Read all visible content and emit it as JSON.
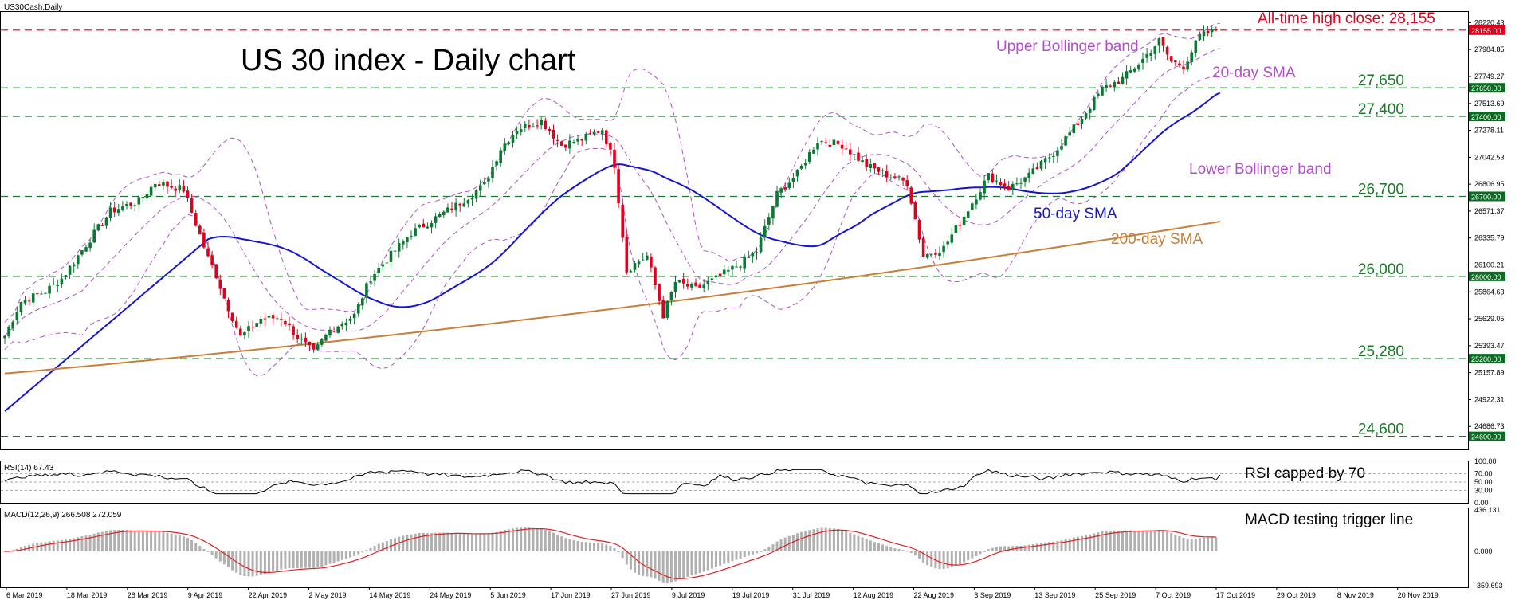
{
  "symbol_label": "US30Cash,Daily",
  "rsi_label": "RSI(14) 67.43",
  "macd_label": "MACD(12,26,9) 266.508 272.059",
  "colors": {
    "bull": "#0a7a33",
    "bear": "#e0001b",
    "sma50": "#1515d0",
    "sma200": "#c87f3a",
    "bollinger": "#b050c8",
    "levels": "#1a7a2a",
    "ath": "#e0001b",
    "macd_signal": "#e02020",
    "macd_hist": "#b0b0b0",
    "osc_line": "#000000",
    "level_badge_bg": "#0b6b22",
    "ath_badge_bg": "#e0001b"
  },
  "chart_data": [
    {
      "type": "candlestick",
      "title": "US 30 index - Daily chart",
      "ylim": [
        24500,
        28300
      ],
      "y_ticks": [
        "28220.43",
        "27984.85",
        "27749.27",
        "27513.69",
        "27278.11",
        "27042.53",
        "26806.95",
        "26571.37",
        "26335.79",
        "26100.21",
        "25864.63",
        "25629.05",
        "25393.47",
        "25157.89",
        "24922.31",
        "24686.73"
      ],
      "x_labels": [
        "6 Mar 2019",
        "18 Mar 2019",
        "28 Mar 2019",
        "9 Apr 2019",
        "22 Apr 2019",
        "2 May 2019",
        "14 May 2019",
        "24 May 2019",
        "5 Jun 2019",
        "17 Jun 2019",
        "27 Jun 2019",
        "9 Jul 2019",
        "19 Jul 2019",
        "31 Jul 2019",
        "12 Aug 2019",
        "22 Aug 2019",
        "3 Sep 2019",
        "13 Sep 2019",
        "25 Sep 2019",
        "7 Oct 2019",
        "17 Oct 2019",
        "29 Oct 2019",
        "8 Nov 2019",
        "20 Nov 2019"
      ],
      "levels": [
        {
          "value": 27650,
          "label": "27,650",
          "badge": "27650.00"
        },
        {
          "value": 27400,
          "label": "27,400",
          "badge": "27400.00"
        },
        {
          "value": 26700,
          "label": "26,700",
          "badge": "26700.00"
        },
        {
          "value": 26000,
          "label": "26,000",
          "badge": "26000.00"
        },
        {
          "value": 25280,
          "label": "25,280",
          "badge": "25280.00"
        },
        {
          "value": 24600,
          "label": "24,600",
          "badge": "24600.00"
        }
      ],
      "all_time_high": {
        "value": 28155,
        "label": "All-time high close: 28,155",
        "badge": "28155.00"
      },
      "annotations": {
        "upper_bb": "Upper Bollinger band",
        "sma20": "20-day SMA",
        "lower_bb": "Lower Bollinger band",
        "sma50": "50-day SMA",
        "sma200": "200-day SMA"
      },
      "price_anchors": [
        [
          0,
          25480
        ],
        [
          4,
          25780
        ],
        [
          10,
          25870
        ],
        [
          14,
          25980
        ],
        [
          19,
          26230
        ],
        [
          26,
          26570
        ],
        [
          33,
          26660
        ],
        [
          37,
          26820
        ],
        [
          44,
          26760
        ],
        [
          50,
          26160
        ],
        [
          52,
          26010
        ],
        [
          54,
          25810
        ],
        [
          58,
          25470
        ],
        [
          63,
          25630
        ],
        [
          68,
          25640
        ],
        [
          72,
          25470
        ],
        [
          76,
          25330
        ],
        [
          80,
          25530
        ],
        [
          86,
          25660
        ],
        [
          90,
          25990
        ],
        [
          95,
          26190
        ],
        [
          100,
          26380
        ],
        [
          105,
          26490
        ],
        [
          111,
          26620
        ],
        [
          118,
          26800
        ],
        [
          122,
          27120
        ],
        [
          126,
          27290
        ],
        [
          132,
          27360
        ],
        [
          137,
          27150
        ],
        [
          142,
          27200
        ],
        [
          147,
          27290
        ],
        [
          150,
          26980
        ],
        [
          153,
          26050
        ],
        [
          155,
          26110
        ],
        [
          158,
          26180
        ],
        [
          162,
          25660
        ],
        [
          165,
          25950
        ],
        [
          170,
          25890
        ],
        [
          175,
          25980
        ],
        [
          180,
          26090
        ],
        [
          185,
          26220
        ],
        [
          190,
          26720
        ],
        [
          195,
          26900
        ],
        [
          200,
          27190
        ],
        [
          206,
          27150
        ],
        [
          212,
          26970
        ],
        [
          217,
          26890
        ],
        [
          222,
          26820
        ],
        [
          226,
          26180
        ],
        [
          231,
          26250
        ],
        [
          236,
          26530
        ],
        [
          242,
          26880
        ],
        [
          247,
          26770
        ],
        [
          252,
          26880
        ],
        [
          258,
          27080
        ],
        [
          264,
          27340
        ],
        [
          270,
          27640
        ],
        [
          275,
          27730
        ],
        [
          280,
          27900
        ],
        [
          284,
          28060
        ],
        [
          287,
          27880
        ],
        [
          290,
          27840
        ],
        [
          294,
          28100
        ],
        [
          298,
          28155
        ]
      ],
      "sma50": {
        "start": 24820,
        "end": 27130
      },
      "sma200": {
        "start": 25150,
        "end": 26480
      },
      "bollinger_width": 310
    },
    {
      "type": "line",
      "series": [
        {
          "name": "RSI(14)",
          "last": 67.43
        }
      ],
      "ylim": [
        0,
        100
      ],
      "y_ticks": [
        "100.00",
        "70.00",
        "50.00",
        "30.00",
        "0.00"
      ],
      "annotation": "RSI capped by 70"
    },
    {
      "type": "histogram+line",
      "series": [
        {
          "name": "MACD",
          "last": 266.508
        },
        {
          "name": "Signal",
          "last": 272.059
        }
      ],
      "ylim": [
        -359.693,
        436.131
      ],
      "y_ticks": [
        "436.131",
        "0.000",
        "-359.693"
      ],
      "annotation": "MACD testing trigger line"
    }
  ]
}
